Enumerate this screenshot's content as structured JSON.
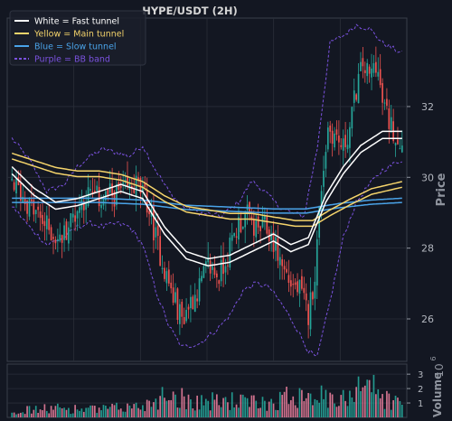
{
  "chart_data": {
    "type": "candlestick",
    "title": "HYPE/USDT (2H)",
    "ylabel": "Price",
    "volume_label": "Volume",
    "volume_exponent_label": "10",
    "volume_exponent": "6",
    "ylim": [
      24.8,
      34.5
    ],
    "yticks": [
      26,
      28,
      30,
      32
    ],
    "volume_ylim": [
      0,
      3.7
    ],
    "volume_ticks": [
      1,
      2,
      3
    ],
    "grid": true,
    "legend_position": "top-left",
    "legend": [
      {
        "label": "White = Fast tunnel",
        "color": "#ffffff",
        "style": "solid"
      },
      {
        "label": "Yellow = Main tunnel",
        "color": "#f5d46b",
        "style": "solid"
      },
      {
        "label": "Blue = Slow tunnel",
        "color": "#4aa3e8",
        "style": "solid"
      },
      {
        "label": "Purple = BB band",
        "color": "#7b52e0",
        "style": "dashed"
      }
    ],
    "colors": {
      "up": "#26a69a",
      "down": "#ef5350",
      "fast": "#ffffff",
      "main": "#f5d46b",
      "slow": "#4aa3e8",
      "bb": "#7b52e0",
      "background": "#131722",
      "grid": "#2a2e39"
    },
    "candle_count": 180,
    "close_path": [
      [
        0,
        29.9
      ],
      [
        8,
        29.2
      ],
      [
        16,
        28.6
      ],
      [
        22,
        28.2
      ],
      [
        28,
        28.9
      ],
      [
        34,
        29.5
      ],
      [
        40,
        29.4
      ],
      [
        46,
        29.5
      ],
      [
        52,
        29.6
      ],
      [
        57,
        29.8
      ],
      [
        62,
        29.3
      ],
      [
        66,
        28.3
      ],
      [
        70,
        27.4
      ],
      [
        74,
        26.6
      ],
      [
        78,
        26.0
      ],
      [
        82,
        26.5
      ],
      [
        86,
        26.9
      ],
      [
        90,
        27.5
      ],
      [
        95,
        27.2
      ],
      [
        100,
        28.0
      ],
      [
        104,
        28.7
      ],
      [
        108,
        28.9
      ],
      [
        112,
        28.5
      ],
      [
        116,
        28.6
      ],
      [
        120,
        28.2
      ],
      [
        124,
        27.5
      ],
      [
        128,
        27.0
      ],
      [
        132,
        26.8
      ],
      [
        136,
        26.1
      ],
      [
        139,
        27.3
      ],
      [
        142,
        29.8
      ],
      [
        145,
        31.4
      ],
      [
        148,
        31.2
      ],
      [
        152,
        30.8
      ],
      [
        155,
        31.4
      ],
      [
        158,
        32.5
      ],
      [
        161,
        33.2
      ],
      [
        164,
        32.8
      ],
      [
        167,
        33.3
      ],
      [
        170,
        32.1
      ],
      [
        173,
        31.6
      ],
      [
        176,
        31.2
      ],
      [
        179,
        31.0
      ]
    ],
    "fast_tunnel": [
      [
        0,
        30.2
      ],
      [
        10,
        29.6
      ],
      [
        20,
        29.2
      ],
      [
        30,
        29.3
      ],
      [
        40,
        29.5
      ],
      [
        50,
        29.7
      ],
      [
        60,
        29.5
      ],
      [
        70,
        28.5
      ],
      [
        80,
        27.8
      ],
      [
        90,
        27.6
      ],
      [
        100,
        27.7
      ],
      [
        110,
        28.0
      ],
      [
        120,
        28.3
      ],
      [
        128,
        28.0
      ],
      [
        136,
        28.2
      ],
      [
        144,
        29.4
      ],
      [
        152,
        30.2
      ],
      [
        160,
        30.8
      ],
      [
        170,
        31.2
      ],
      [
        179,
        31.2
      ]
    ],
    "main_tunnel": [
      [
        0,
        30.6
      ],
      [
        10,
        30.4
      ],
      [
        20,
        30.2
      ],
      [
        30,
        30.1
      ],
      [
        40,
        30.1
      ],
      [
        50,
        30.0
      ],
      [
        60,
        29.8
      ],
      [
        70,
        29.4
      ],
      [
        80,
        29.1
      ],
      [
        90,
        29.0
      ],
      [
        100,
        28.9
      ],
      [
        110,
        28.9
      ],
      [
        120,
        28.8
      ],
      [
        130,
        28.7
      ],
      [
        138,
        28.7
      ],
      [
        146,
        29.0
      ],
      [
        155,
        29.3
      ],
      [
        165,
        29.6
      ],
      [
        179,
        29.8
      ]
    ],
    "slow_tunnel": [
      [
        0,
        29.35
      ],
      [
        20,
        29.35
      ],
      [
        40,
        29.35
      ],
      [
        60,
        29.3
      ],
      [
        80,
        29.15
      ],
      [
        100,
        29.1
      ],
      [
        120,
        29.05
      ],
      [
        135,
        29.05
      ],
      [
        150,
        29.2
      ],
      [
        165,
        29.3
      ],
      [
        179,
        29.35
      ]
    ],
    "bb_upper": [
      [
        0,
        31.1
      ],
      [
        8,
        30.5
      ],
      [
        16,
        29.6
      ],
      [
        24,
        29.8
      ],
      [
        30,
        30.3
      ],
      [
        36,
        30.6
      ],
      [
        42,
        30.8
      ],
      [
        48,
        30.7
      ],
      [
        54,
        30.6
      ],
      [
        60,
        30.9
      ],
      [
        66,
        30.2
      ],
      [
        72,
        29.6
      ],
      [
        78,
        29.2
      ],
      [
        86,
        29.0
      ],
      [
        96,
        28.9
      ],
      [
        104,
        29.3
      ],
      [
        110,
        29.9
      ],
      [
        116,
        29.6
      ],
      [
        122,
        29.2
      ],
      [
        128,
        29.0
      ],
      [
        134,
        28.9
      ],
      [
        140,
        30.8
      ],
      [
        146,
        33.8
      ],
      [
        152,
        34.0
      ],
      [
        158,
        34.3
      ],
      [
        164,
        34.2
      ],
      [
        170,
        33.8
      ],
      [
        179,
        33.5
      ]
    ],
    "bb_lower": [
      [
        0,
        29.2
      ],
      [
        8,
        28.6
      ],
      [
        16,
        28.1
      ],
      [
        24,
        28.3
      ],
      [
        30,
        28.6
      ],
      [
        36,
        28.7
      ],
      [
        42,
        28.6
      ],
      [
        48,
        28.7
      ],
      [
        54,
        28.6
      ],
      [
        60,
        28.1
      ],
      [
        66,
        26.8
      ],
      [
        72,
        25.8
      ],
      [
        78,
        25.2
      ],
      [
        86,
        25.3
      ],
      [
        94,
        25.7
      ],
      [
        100,
        26.1
      ],
      [
        106,
        26.8
      ],
      [
        112,
        27.0
      ],
      [
        118,
        26.9
      ],
      [
        124,
        26.4
      ],
      [
        130,
        25.8
      ],
      [
        136,
        25.1
      ],
      [
        140,
        24.9
      ],
      [
        146,
        26.5
      ],
      [
        152,
        28.3
      ],
      [
        158,
        29.3
      ],
      [
        164,
        29.8
      ],
      [
        170,
        30.2
      ],
      [
        179,
        30.5
      ]
    ],
    "volume_profile": [
      [
        0,
        0.5
      ],
      [
        20,
        0.7
      ],
      [
        40,
        0.6
      ],
      [
        60,
        0.9
      ],
      [
        72,
        1.9
      ],
      [
        80,
        1.4
      ],
      [
        90,
        1.2
      ],
      [
        100,
        1.3
      ],
      [
        110,
        1.1
      ],
      [
        120,
        1.2
      ],
      [
        130,
        1.8
      ],
      [
        136,
        2.2
      ],
      [
        142,
        1.6
      ],
      [
        150,
        1.0
      ],
      [
        158,
        2.6
      ],
      [
        162,
        3.3
      ],
      [
        168,
        1.7
      ],
      [
        179,
        1.0
      ]
    ]
  }
}
